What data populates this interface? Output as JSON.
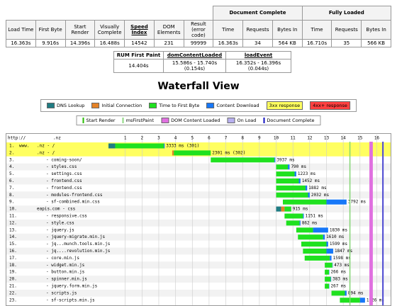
{
  "summary": {
    "columns": [
      "Load Time",
      "First Byte",
      "Start Render",
      "Visually Complete",
      "Speed Index",
      "DOM Elements",
      "Result (error code)"
    ],
    "values": [
      "16.363s",
      "9.916s",
      "14.396s",
      "16.488s",
      "14542",
      "231",
      "99999"
    ],
    "groups": [
      {
        "title": "Document Complete",
        "columns": [
          "Time",
          "Requests",
          "Bytes In"
        ],
        "values": [
          "16.363s",
          "34",
          "564 KB"
        ]
      },
      {
        "title": "Fully Loaded",
        "columns": [
          "Time",
          "Requests",
          "Bytes In"
        ],
        "values": [
          "16.710s",
          "35",
          "566 KB"
        ]
      }
    ]
  },
  "rum": {
    "columns": [
      "RUM First Paint",
      "domContentLoaded",
      "loadEvent"
    ],
    "values": [
      "14.404s",
      "15.586s - 15.740s (0.154s)",
      "16.352s - 16.396s (0.044s)"
    ]
  },
  "title": "Waterfall View",
  "legend": [
    {
      "label": "DNS Lookup",
      "color": "#1f7c83",
      "kind": "swatch"
    },
    {
      "label": "Initial Connection",
      "color": "#e58226",
      "kind": "swatch"
    },
    {
      "label": "Time to First Byte",
      "color": "#1fe11f",
      "kind": "swatch"
    },
    {
      "label": "Content Download",
      "color": "#1677f8",
      "kind": "swatch"
    },
    {
      "label": "3xx response",
      "color": "#ffff60",
      "kind": "fill"
    },
    {
      "label": "4xx+ response",
      "color": "#ff4040",
      "kind": "fill"
    }
  ],
  "markers": [
    {
      "label": "Start Render",
      "color": "#28bc00",
      "start": 14.396
    },
    {
      "label": "msFirstPaint",
      "color": "#8fd883",
      "start": 14.404
    },
    {
      "label": "DOM Content Loaded",
      "color": "#e070e0",
      "start": 15.586,
      "end": 15.74
    },
    {
      "label": "On Load",
      "color": "#b8b0f0",
      "start": 16.352,
      "end": 16.396
    },
    {
      "label": "Document Complete",
      "color": "#1010c0",
      "start": 16.363
    }
  ],
  "waterfall": {
    "header_left": "http://",
    "header_domain": ".nz",
    "xlim": [
      0,
      16.7
    ],
    "xticks": [
      1,
      2,
      3,
      4,
      5,
      6,
      7,
      8,
      9,
      10,
      11,
      12,
      13,
      14,
      15,
      16
    ],
    "rows": [
      {
        "num": "1.",
        "host": "www.",
        "path": ".nz - /",
        "start": 0,
        "segments": [
          0.4,
          0,
          2.9,
          0.05
        ],
        "timing": "3333 ms (301)",
        "highlight": "3xx response"
      },
      {
        "num": "2.",
        "path": ".nz - /",
        "start": 3.8,
        "segments": [
          0,
          0.1,
          2.2,
          0
        ],
        "timing": "2301 ms (302)",
        "highlight": "3xx response"
      },
      {
        "num": "3.",
        "path": "- coming-soon/",
        "start": 6.1,
        "segments": [
          0,
          0,
          3.8,
          0.05
        ],
        "timing": "3937 ms"
      },
      {
        "num": "4.",
        "path": "- styles.css",
        "start": 10,
        "segments": [
          0,
          0,
          0.7,
          0.1
        ],
        "timing": "790 ms"
      },
      {
        "num": "5.",
        "path": "- settings.css",
        "start": 10,
        "segments": [
          0,
          0,
          1.1,
          0.1
        ],
        "timing": "1223 ms"
      },
      {
        "num": "6.",
        "path": "- frontend.css",
        "start": 10,
        "segments": [
          0,
          0,
          1.35,
          0.1
        ],
        "timing": "1452 ms"
      },
      {
        "num": "7.",
        "path": "- frontend.css",
        "start": 10,
        "segments": [
          0,
          0,
          1.75,
          0.1
        ],
        "timing": "1882 ms"
      },
      {
        "num": "8.",
        "path": "- modules-frontend.css",
        "start": 10,
        "segments": [
          0,
          0,
          1.9,
          0.1
        ],
        "timing": "2032 ms"
      },
      {
        "num": "9.",
        "path": "- sf-combined.min.css",
        "start": 10.4,
        "segments": [
          0,
          0,
          2.6,
          1.2
        ],
        "timing": "3792 ms"
      },
      {
        "num": "10.",
        "path": "eapis.com - css",
        "start": 10,
        "segments": [
          0.3,
          0.2,
          0.4,
          0
        ],
        "timing": "915 ms"
      },
      {
        "num": "11.",
        "path": "- responsive.css",
        "start": 10.5,
        "segments": [
          0,
          0,
          1.1,
          0.05
        ],
        "timing": "1151 ms"
      },
      {
        "num": "12.",
        "path": "- style.css",
        "start": 10.6,
        "segments": [
          0,
          0,
          0.8,
          0.05
        ],
        "timing": "862 ms"
      },
      {
        "num": "13.",
        "path": "- jquery.js",
        "start": 11.2,
        "segments": [
          0,
          0,
          1.0,
          0.9
        ],
        "timing": "1830 ms"
      },
      {
        "num": "14.",
        "path": "- jquery-migrate.min.js",
        "start": 11.3,
        "segments": [
          0,
          0,
          1.5,
          0.1
        ],
        "timing": "1610 ms"
      },
      {
        "num": "15.",
        "path": "- jq...munch.tools.min.js",
        "start": 11.5,
        "segments": [
          0,
          0,
          1.5,
          0.1
        ],
        "timing": "1599 ms"
      },
      {
        "num": "16.",
        "path": "- jq....revolution.min.js",
        "start": 11.6,
        "segments": [
          0,
          0,
          1.4,
          0.4
        ],
        "timing": "1847 ms"
      },
      {
        "num": "17.",
        "path": "- core.min.js",
        "start": 11.7,
        "segments": [
          0,
          0,
          1.5,
          0.1
        ],
        "timing": "1598 ms"
      },
      {
        "num": "18.",
        "path": "- widget.min.js",
        "start": 12.9,
        "segments": [
          0,
          0,
          0.45,
          0.02
        ],
        "timing": "473 ms"
      },
      {
        "num": "19.",
        "path": "- button.min.js",
        "start": 12.9,
        "segments": [
          0,
          0,
          0.25,
          0.02
        ],
        "timing": "266 ms"
      },
      {
        "num": "20.",
        "path": "- spinner.min.js",
        "start": 12.9,
        "segments": [
          0,
          0,
          0.35,
          0.03
        ],
        "timing": "383 ms"
      },
      {
        "num": "21.",
        "path": "- jquery.form.min.js",
        "start": 12.9,
        "segments": [
          0,
          0,
          0.25,
          0.02
        ],
        "timing": "267 ms"
      },
      {
        "num": "22.",
        "path": "- scripts.js",
        "start": 13.3,
        "segments": [
          0,
          0,
          0.8,
          0.1
        ],
        "timing": "894 ms"
      },
      {
        "num": "23.",
        "path": "- sf-scripts.min.js",
        "start": 13.8,
        "segments": [
          0,
          0,
          1.2,
          0.3
        ],
        "timing": "1526 ms"
      }
    ]
  }
}
